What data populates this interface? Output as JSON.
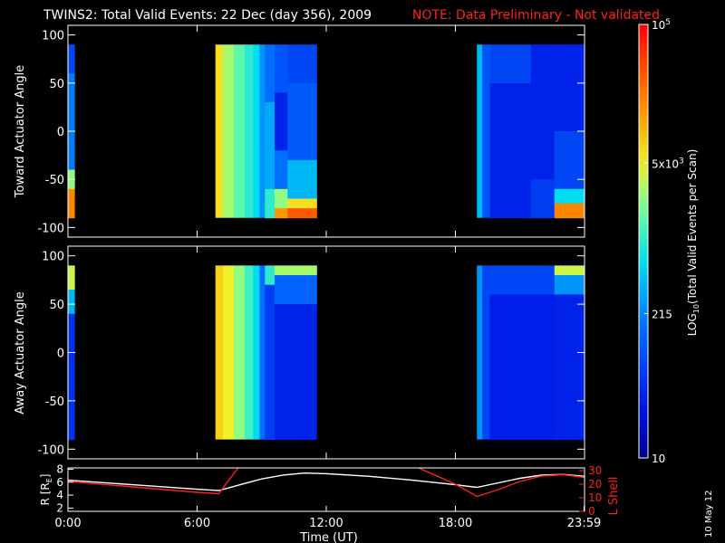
{
  "header": {
    "title": "TWINS2: Total Valid Events: 22 Dec (day 356), 2009",
    "note": "NOTE: Data Preliminary - Not validated",
    "note_color": "#ff2020"
  },
  "footer": {
    "date_stamp": "10 May 12"
  },
  "chart_data": [
    {
      "type": "heatmap",
      "name": "toward",
      "ylabel": "Toward Actuator Angle",
      "ylim": [
        -110,
        110
      ],
      "yticks": [
        "100",
        "50",
        "0",
        "-50",
        "-100"
      ],
      "ytick_values": [
        100,
        50,
        0,
        -50,
        -100
      ],
      "xlim_hours": [
        0,
        24
      ],
      "data_intervals": [
        {
          "start_h": 0.0,
          "end_h": 0.3,
          "angle_range": [
            -90,
            90
          ],
          "columns": [
            {
              "t0": 0.0,
              "t1": 0.3,
              "rows": [
                {
                  "a0": 60,
                  "a1": 90,
                  "level": 0.22
                },
                {
                  "a0": -40,
                  "a1": 60,
                  "level": 0.32
                },
                {
                  "a0": -60,
                  "a1": -40,
                  "level": 0.6
                },
                {
                  "a0": -90,
                  "a1": -60,
                  "level": 0.82
                }
              ]
            }
          ]
        },
        {
          "start_h": 6.85,
          "end_h": 11.55,
          "angle_range": [
            -90,
            90
          ],
          "columns": [
            {
              "t0": 6.85,
              "t1": 7.2,
              "level": 0.7
            },
            {
              "t0": 7.2,
              "t1": 7.7,
              "level": 0.62
            },
            {
              "t0": 7.7,
              "t1": 8.2,
              "level": 0.55
            },
            {
              "t0": 8.2,
              "t1": 8.6,
              "level": 0.5
            },
            {
              "t0": 8.6,
              "t1": 8.9,
              "level": 0.45
            },
            {
              "t0": 8.9,
              "t1": 9.15,
              "level": 0.35
            },
            {
              "t0": 9.15,
              "t1": 9.6,
              "rows": [
                {
                  "a0": 30,
                  "a1": 90,
                  "level": 0.3
                },
                {
                  "a0": -60,
                  "a1": 30,
                  "level": 0.38
                },
                {
                  "a0": -90,
                  "a1": -60,
                  "level": 0.5
                }
              ]
            },
            {
              "t0": 9.6,
              "t1": 10.2,
              "rows": [
                {
                  "a0": 40,
                  "a1": 90,
                  "level": 0.25
                },
                {
                  "a0": -20,
                  "a1": 40,
                  "level": 0.15
                },
                {
                  "a0": -60,
                  "a1": -20,
                  "level": 0.3
                },
                {
                  "a0": -80,
                  "a1": -60,
                  "level": 0.6
                },
                {
                  "a0": -90,
                  "a1": -80,
                  "level": 0.8
                }
              ]
            },
            {
              "t0": 10.2,
              "t1": 11.55,
              "rows": [
                {
                  "a0": 50,
                  "a1": 90,
                  "level": 0.22
                },
                {
                  "a0": -30,
                  "a1": 50,
                  "level": 0.26
                },
                {
                  "a0": -70,
                  "a1": -30,
                  "level": 0.4
                },
                {
                  "a0": -80,
                  "a1": -70,
                  "level": 0.7
                },
                {
                  "a0": -90,
                  "a1": -80,
                  "level": 0.88
                }
              ]
            }
          ]
        },
        {
          "start_h": 19.0,
          "end_h": 24.0,
          "angle_range": [
            -90,
            90
          ],
          "columns": [
            {
              "t0": 19.0,
              "t1": 19.25,
              "level": 0.4
            },
            {
              "t0": 19.25,
              "t1": 19.6,
              "level": 0.25
            },
            {
              "t0": 19.6,
              "t1": 21.5,
              "rows": [
                {
                  "a0": 50,
                  "a1": 90,
                  "level": 0.22
                },
                {
                  "a0": -90,
                  "a1": 50,
                  "level": 0.15
                }
              ]
            },
            {
              "t0": 21.5,
              "t1": 22.6,
              "rows": [
                {
                  "a0": -50,
                  "a1": 90,
                  "level": 0.15
                },
                {
                  "a0": -90,
                  "a1": -50,
                  "level": 0.2
                }
              ]
            },
            {
              "t0": 22.6,
              "t1": 24.0,
              "rows": [
                {
                  "a0": 0,
                  "a1": 90,
                  "level": 0.15
                },
                {
                  "a0": -60,
                  "a1": 0,
                  "level": 0.22
                },
                {
                  "a0": -75,
                  "a1": -60,
                  "level": 0.45
                },
                {
                  "a0": -90,
                  "a1": -75,
                  "level": 0.82
                }
              ]
            }
          ]
        }
      ]
    },
    {
      "type": "heatmap",
      "name": "away",
      "ylabel": "Away Actuator Angle",
      "ylim": [
        -110,
        110
      ],
      "yticks": [
        "100",
        "50",
        "0",
        "-50",
        "-100"
      ],
      "ytick_values": [
        100,
        50,
        0,
        -50,
        -100
      ],
      "xlim_hours": [
        0,
        24
      ],
      "data_intervals": [
        {
          "start_h": 0.0,
          "end_h": 0.3,
          "angle_range": [
            -90,
            90
          ],
          "columns": [
            {
              "t0": 0.0,
              "t1": 0.3,
              "rows": [
                {
                  "a0": 65,
                  "a1": 90,
                  "level": 0.65
                },
                {
                  "a0": 40,
                  "a1": 65,
                  "level": 0.4
                },
                {
                  "a0": -90,
                  "a1": 40,
                  "level": 0.18
                }
              ]
            }
          ]
        },
        {
          "start_h": 6.85,
          "end_h": 11.55,
          "angle_range": [
            -90,
            90
          ],
          "columns": [
            {
              "t0": 6.85,
              "t1": 7.2,
              "level": 0.72
            },
            {
              "t0": 7.2,
              "t1": 7.7,
              "level": 0.68
            },
            {
              "t0": 7.7,
              "t1": 8.2,
              "level": 0.6
            },
            {
              "t0": 8.2,
              "t1": 8.6,
              "level": 0.52
            },
            {
              "t0": 8.6,
              "t1": 8.9,
              "level": 0.45
            },
            {
              "t0": 8.9,
              "t1": 9.15,
              "level": 0.3
            },
            {
              "t0": 9.15,
              "t1": 9.6,
              "rows": [
                {
                  "a0": 70,
                  "a1": 90,
                  "level": 0.5
                },
                {
                  "a0": -90,
                  "a1": 70,
                  "level": 0.2
                }
              ]
            },
            {
              "t0": 9.6,
              "t1": 11.55,
              "rows": [
                {
                  "a0": 80,
                  "a1": 90,
                  "level": 0.62
                },
                {
                  "a0": 50,
                  "a1": 80,
                  "level": 0.28
                },
                {
                  "a0": -90,
                  "a1": 50,
                  "level": 0.15
                }
              ]
            }
          ]
        },
        {
          "start_h": 19.0,
          "end_h": 24.0,
          "angle_range": [
            -90,
            90
          ],
          "columns": [
            {
              "t0": 19.0,
              "t1": 19.25,
              "level": 0.35
            },
            {
              "t0": 19.25,
              "t1": 19.6,
              "level": 0.22
            },
            {
              "t0": 19.6,
              "t1": 22.6,
              "rows": [
                {
                  "a0": 60,
                  "a1": 90,
                  "level": 0.22
                },
                {
                  "a0": -90,
                  "a1": 60,
                  "level": 0.14
                }
              ]
            },
            {
              "t0": 22.6,
              "t1": 24.0,
              "rows": [
                {
                  "a0": 80,
                  "a1": 90,
                  "level": 0.65
                },
                {
                  "a0": 60,
                  "a1": 80,
                  "level": 0.35
                },
                {
                  "a0": -90,
                  "a1": 60,
                  "level": 0.15
                }
              ]
            }
          ]
        }
      ]
    },
    {
      "type": "line",
      "name": "orbit",
      "xlabel": "Time (UT)",
      "xtick_labels": [
        "0:00",
        "6:00",
        "12:00",
        "18:00",
        "23:59"
      ],
      "xtick_hours": [
        0,
        6,
        12,
        18,
        23.98
      ],
      "x_hours": [
        0,
        3,
        6,
        7.0,
        8,
        9,
        10,
        11,
        12,
        14,
        16,
        18,
        19.0,
        20,
        21,
        22,
        23,
        24
      ],
      "left_axis": {
        "label": "R [R_E]",
        "label_main": "R [R",
        "label_sub": "E",
        "label_close": "]",
        "ylim": [
          1.5,
          8.2
        ],
        "yticks": [
          "2",
          "4",
          "6",
          "8"
        ],
        "ytick_values": [
          2,
          4,
          6,
          8
        ],
        "color": "#ffffff"
      },
      "right_axis": {
        "label": "L Shell",
        "ylim": [
          0,
          32
        ],
        "yticks": [
          "0",
          "10",
          "20",
          "30"
        ],
        "ytick_values": [
          0,
          10,
          20,
          30
        ],
        "color": "#ff2020"
      },
      "series": [
        {
          "name": "R",
          "axis": "left",
          "color": "#ffffff",
          "values": [
            6.3,
            5.6,
            4.9,
            4.7,
            5.6,
            6.5,
            7.1,
            7.4,
            7.3,
            6.9,
            6.3,
            5.6,
            5.2,
            5.9,
            6.6,
            7.1,
            7.2,
            6.9
          ]
        },
        {
          "name": "L Shell",
          "axis": "right",
          "color": "#ff2020",
          "clip": true,
          "values": [
            22,
            18,
            14,
            13,
            34,
            null,
            null,
            null,
            null,
            null,
            34,
            20,
            11,
            16,
            22,
            26,
            27,
            25
          ]
        }
      ]
    }
  ],
  "colorbar": {
    "label_main": "LOG",
    "label_sub": "10",
    "label_rest": "(Total Valid Events per Scan)",
    "ticks": [
      {
        "label": "10",
        "frac": 0.0
      },
      {
        "label": "215",
        "frac": 0.333
      },
      {
        "label_main": "5x10",
        "label_sup": "3",
        "frac": 0.68
      },
      {
        "label_main": "10",
        "label_sup": "5",
        "frac": 1.0
      }
    ]
  }
}
